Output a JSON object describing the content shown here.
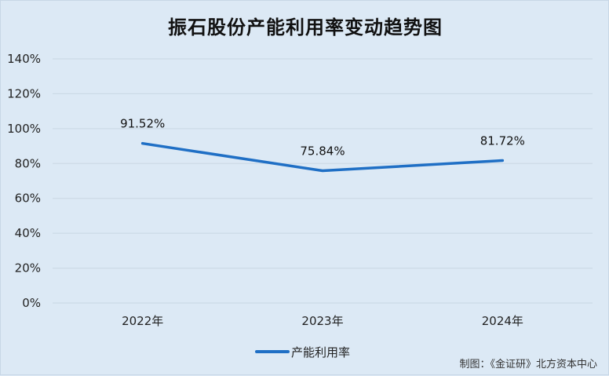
{
  "title": "振石股份产能利用率变动趋势图",
  "credit": "制图：《金证研》北方资本中心",
  "colors": {
    "background": "#dce9f5",
    "line": "#1f6fc5",
    "grid": "#c9d7e4"
  },
  "chart_data": {
    "type": "line",
    "categories": [
      "2022年",
      "2023年",
      "2024年"
    ],
    "series": [
      {
        "name": "产能利用率",
        "values": [
          91.52,
          75.84,
          81.72
        ]
      }
    ],
    "data_labels": [
      "91.52%",
      "75.84%",
      "81.72%"
    ],
    "y_ticks": [
      "0%",
      "20%",
      "40%",
      "60%",
      "80%",
      "100%",
      "120%",
      "140%"
    ],
    "ylim": [
      0,
      140
    ],
    "y_step": 20,
    "grid": true,
    "legend": "bottom-center"
  }
}
